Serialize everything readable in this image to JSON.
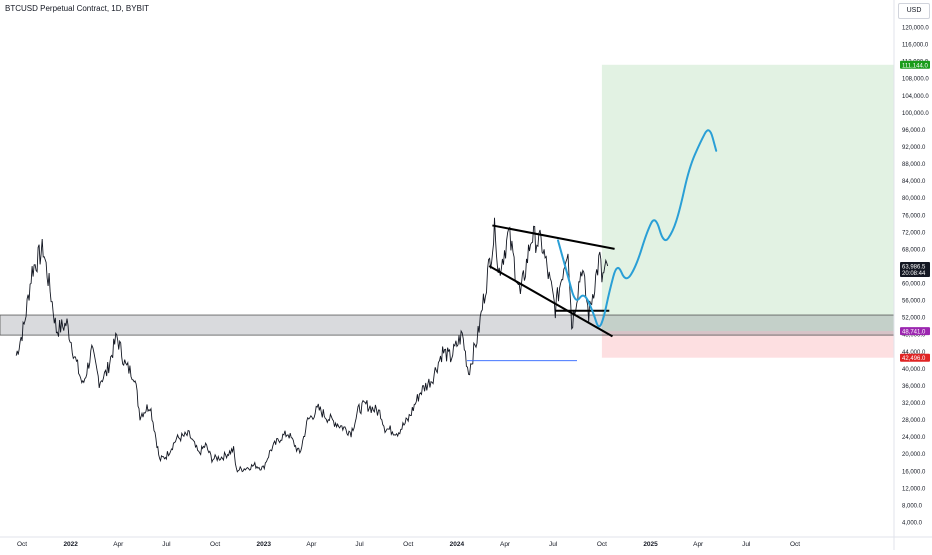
{
  "header": {
    "title": "BTCUSD Perpetual Contract, 1D, BYBIT",
    "currency": "USD"
  },
  "chart_data": {
    "type": "line",
    "xlabel": "",
    "ylabel": "",
    "grid": false,
    "x_ticks": [
      {
        "label": "Oct",
        "date": "2021-10-01"
      },
      {
        "label": "2022",
        "date": "2022-01-01"
      },
      {
        "label": "Apr",
        "date": "2022-04-01"
      },
      {
        "label": "Jul",
        "date": "2022-07-01"
      },
      {
        "label": "Oct",
        "date": "2022-10-01"
      },
      {
        "label": "2023",
        "date": "2023-01-01"
      },
      {
        "label": "Apr",
        "date": "2023-04-01"
      },
      {
        "label": "Jul",
        "date": "2023-07-01"
      },
      {
        "label": "Oct",
        "date": "2023-10-01"
      },
      {
        "label": "2024",
        "date": "2024-01-01"
      },
      {
        "label": "Apr",
        "date": "2024-04-01"
      },
      {
        "label": "Jul",
        "date": "2024-07-01"
      },
      {
        "label": "Oct",
        "date": "2024-10-01"
      },
      {
        "label": "2025",
        "date": "2025-01-01"
      },
      {
        "label": "Apr",
        "date": "2025-04-01"
      },
      {
        "label": "Jul",
        "date": "2025-07-01"
      },
      {
        "label": "Oct",
        "date": "2025-10-01"
      }
    ],
    "y_ticks": [
      "120,000.0",
      "116,000.0",
      "112,000.0",
      "108,000.0",
      "104,000.0",
      "100,000.0",
      "96,000.0",
      "92,000.0",
      "88,000.0",
      "84,000.0",
      "80,000.0",
      "76,000.0",
      "72,000.0",
      "68,000.0",
      "64,000.0",
      "60,000.0",
      "56,000.0",
      "52,000.0",
      "48,000.0",
      "44,000.0",
      "40,000.0",
      "36,000.0",
      "32,000.0",
      "28,000.0",
      "24,000.0",
      "20,000.0",
      "16,000.0",
      "12,000.0",
      "8,000.0",
      "4,000.0"
    ],
    "ylim": [
      2000,
      124000
    ],
    "price_labels": [
      {
        "text": "111,144.0",
        "value": 111144,
        "color": "#1a9c1a"
      },
      {
        "text": "63,986.5",
        "sub": "20:08:44",
        "value": 63986.5,
        "color": "#131722"
      },
      {
        "text": "48,741.0",
        "value": 48741,
        "color": "#9c27b0"
      },
      {
        "text": "42,496.0",
        "value": 42496,
        "color": "#e02424"
      }
    ],
    "price_series": [
      [
        "2021-09-20",
        43000
      ],
      [
        "2021-10-05",
        50000
      ],
      [
        "2021-10-20",
        63000
      ],
      [
        "2021-11-10",
        68000
      ],
      [
        "2021-11-25",
        57000
      ],
      [
        "2021-12-05",
        49000
      ],
      [
        "2021-12-25",
        50500
      ],
      [
        "2022-01-10",
        42000
      ],
      [
        "2022-01-24",
        36000
      ],
      [
        "2022-02-10",
        44000
      ],
      [
        "2022-02-24",
        37000
      ],
      [
        "2022-03-10",
        39000
      ],
      [
        "2022-03-29",
        47500
      ],
      [
        "2022-04-15",
        40500
      ],
      [
        "2022-05-01",
        38500
      ],
      [
        "2022-05-12",
        29000
      ],
      [
        "2022-05-31",
        31500
      ],
      [
        "2022-06-13",
        22500
      ],
      [
        "2022-06-18",
        18500
      ],
      [
        "2022-07-01",
        19500
      ],
      [
        "2022-07-20",
        23500
      ],
      [
        "2022-08-13",
        24500
      ],
      [
        "2022-08-31",
        20000
      ],
      [
        "2022-09-13",
        22000
      ],
      [
        "2022-09-25",
        18800
      ],
      [
        "2022-10-15",
        19200
      ],
      [
        "2022-11-05",
        21000
      ],
      [
        "2022-11-10",
        16200
      ],
      [
        "2022-11-25",
        16500
      ],
      [
        "2022-12-15",
        17300
      ],
      [
        "2022-12-31",
        16600
      ],
      [
        "2023-01-14",
        20900
      ],
      [
        "2023-02-02",
        23800
      ],
      [
        "2023-02-16",
        24800
      ],
      [
        "2023-03-10",
        20000
      ],
      [
        "2023-03-25",
        27800
      ],
      [
        "2023-04-14",
        30500
      ],
      [
        "2023-05-01",
        28500
      ],
      [
        "2023-06-15",
        25000
      ],
      [
        "2023-06-30",
        30500
      ],
      [
        "2023-07-13",
        31500
      ],
      [
        "2023-08-10",
        29500
      ],
      [
        "2023-08-18",
        26000
      ],
      [
        "2023-09-11",
        25000
      ],
      [
        "2023-10-01",
        28000
      ],
      [
        "2023-10-24",
        34500
      ],
      [
        "2023-11-15",
        37500
      ],
      [
        "2023-12-05",
        44000
      ],
      [
        "2023-12-20",
        42500
      ],
      [
        "2024-01-11",
        48000
      ],
      [
        "2024-01-23",
        39000
      ],
      [
        "2024-02-10",
        48000
      ],
      [
        "2024-02-28",
        62000
      ],
      [
        "2024-03-14",
        73500
      ],
      [
        "2024-03-19",
        62000
      ],
      [
        "2024-04-08",
        71500
      ],
      [
        "2024-04-30",
        57000
      ],
      [
        "2024-05-21",
        71000
      ],
      [
        "2024-06-10",
        69000
      ],
      [
        "2024-07-05",
        54000
      ],
      [
        "2024-07-29",
        69000
      ],
      [
        "2024-08-05",
        50000
      ],
      [
        "2024-08-24",
        64000
      ],
      [
        "2024-09-06",
        52600
      ],
      [
        "2024-09-27",
        66000
      ],
      [
        "2024-10-01",
        61000
      ],
      [
        "2024-10-12",
        63986.5
      ]
    ],
    "projection_path": [
      [
        "2024-07-10",
        70000
      ],
      [
        "2024-07-28",
        62000
      ],
      [
        "2024-08-12",
        55000
      ],
      [
        "2024-08-28",
        58000
      ],
      [
        "2024-09-15",
        53000
      ],
      [
        "2024-09-25",
        49000
      ],
      [
        "2024-10-05",
        52000
      ],
      [
        "2024-10-15",
        58000
      ],
      [
        "2024-10-30",
        65000
      ],
      [
        "2024-11-15",
        60000
      ],
      [
        "2024-12-05",
        64000
      ],
      [
        "2024-12-25",
        72000
      ],
      [
        "2025-01-10",
        76000
      ],
      [
        "2025-01-26",
        69000
      ],
      [
        "2025-02-12",
        72000
      ],
      [
        "2025-02-25",
        77000
      ],
      [
        "2025-03-15",
        87000
      ],
      [
        "2025-04-05",
        93000
      ],
      [
        "2025-04-22",
        97000
      ],
      [
        "2025-05-05",
        91000
      ]
    ],
    "channel_lines": [
      [
        [
          "2024-03-08",
          73500
        ],
        [
          "2024-10-25",
          68000
        ]
      ],
      [
        [
          "2024-03-02",
          64000
        ],
        [
          "2024-10-21",
          47500
        ]
      ],
      [
        [
          "2024-07-05",
          53500
        ],
        [
          "2024-10-15",
          53500
        ]
      ]
    ],
    "support_zone": [
      47800,
      52500
    ],
    "target_zone": {
      "from": "2024-10-01",
      "to": "2025-12-31",
      "top": 111144,
      "entry": 48741,
      "stop": 42496
    },
    "horizontal_ray": {
      "from": "2024-01-20",
      "to": "2024-08-15",
      "value": 41800
    }
  }
}
